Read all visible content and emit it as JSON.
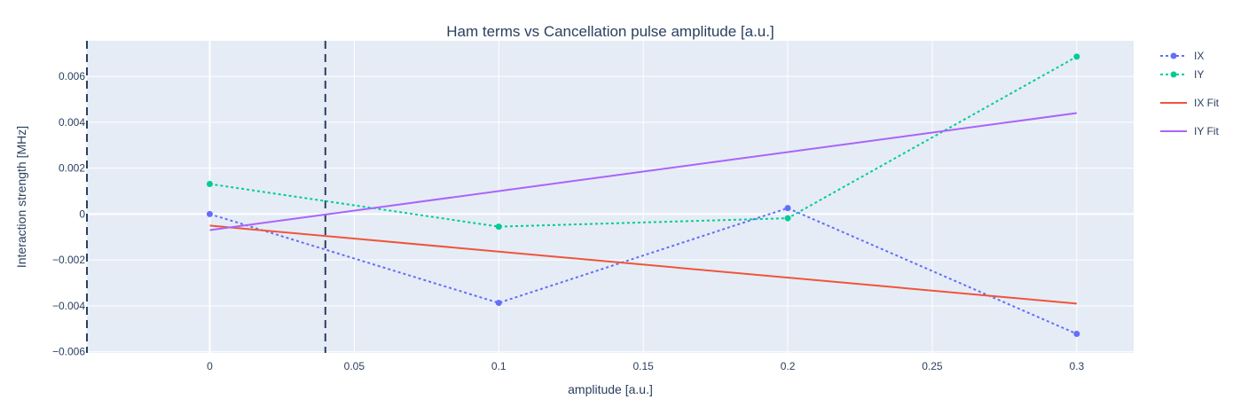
{
  "chart_data": {
    "type": "line",
    "title": "Ham terms vs Cancellation pulse amplitude [a.u.]",
    "xlabel": "amplitude [a.u.]",
    "ylabel": "Interaction strength [MHz]",
    "xlim": [
      -0.0425,
      0.3197
    ],
    "ylim": [
      -0.00605,
      0.00755
    ],
    "xticks": [
      0,
      0.05,
      0.1,
      0.15,
      0.2,
      0.25,
      0.3
    ],
    "xtick_labels": [
      "0",
      "0.05",
      "0.1",
      "0.15",
      "0.2",
      "0.25",
      "0.3"
    ],
    "yticks": [
      -0.006,
      -0.004,
      -0.002,
      0,
      0.002,
      0.004,
      0.006
    ],
    "ytick_labels": [
      "−0.006",
      "−0.004",
      "−0.002",
      "0",
      "0.002",
      "0.004",
      "0.006"
    ],
    "grid": true,
    "legend_position": "right",
    "series": [
      {
        "name": "IX",
        "style": "dotted-markers",
        "color": "#636efa",
        "x": [
          0,
          0.1,
          0.2,
          0.3
        ],
        "y": [
          0.0,
          -0.00387,
          0.00026,
          -0.00522
        ]
      },
      {
        "name": "IY",
        "style": "dotted-markers",
        "color": "#00cc96",
        "x": [
          0,
          0.1,
          0.2,
          0.3
        ],
        "y": [
          0.00131,
          -0.00055,
          -0.00018,
          0.00686
        ]
      },
      {
        "name": "IX Fit",
        "style": "solid",
        "color": "#ef553b",
        "x": [
          0,
          0.3
        ],
        "y": [
          -0.0005,
          -0.0039
        ]
      },
      {
        "name": "IY Fit",
        "style": "solid",
        "color": "#ab63fa",
        "x": [
          0,
          0.3
        ],
        "y": [
          -0.0007,
          0.0044
        ]
      }
    ],
    "vlines": [
      {
        "x": -0.0425,
        "style": "dashed",
        "color": "#2a3f5f"
      },
      {
        "x": 0.04,
        "style": "dashed",
        "color": "#2a3f5f"
      }
    ]
  }
}
